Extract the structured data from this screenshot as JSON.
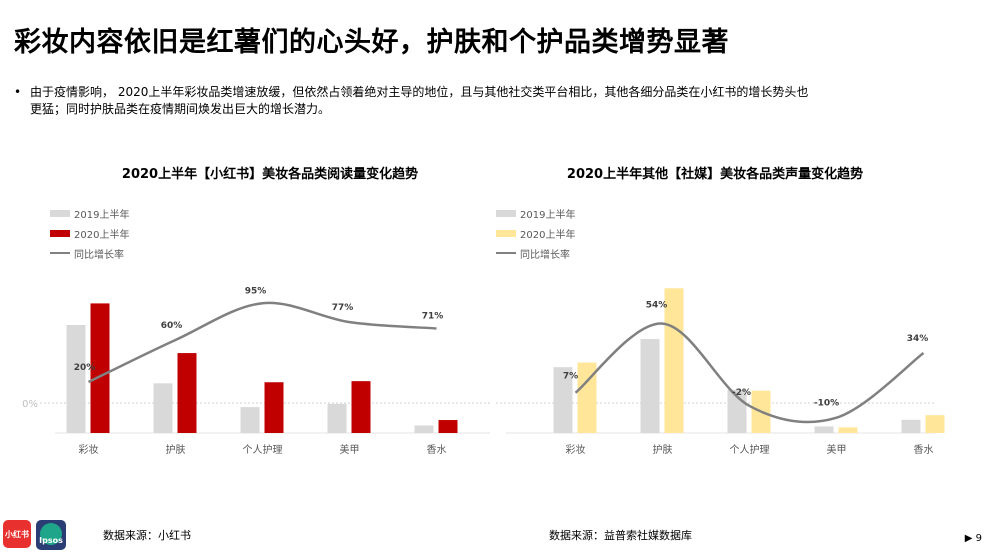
{
  "page": {
    "title": "彩妆内容依旧是红薯们的心头好，护肤和个护品类增势显著",
    "bullet": "由于疫情影响， 2020上半年彩妆品类增速放缓，但依然占领着绝对主导的地位，且与其他社交类平台相比，其他各细分品类在小红书的增长势头也更猛；同时护肤品类在疫情期间焕发出巨大的增长潜力。",
    "logo_left": "小红书",
    "logo_right": "Ipsos",
    "page_number": "9",
    "page_arrow": "▶"
  },
  "chart_data": [
    {
      "type": "bar",
      "title": "2020上半年【小红书】美妆各品类阅读量变化趋势",
      "categories": [
        "彩妆",
        "护肤",
        "个人护理",
        "美甲",
        "香水"
      ],
      "series": [
        {
          "name": "2019上半年",
          "values": [
            100,
            46,
            24,
            27,
            7
          ],
          "color": "#d9d9d9"
        },
        {
          "name": "2020上半年",
          "values": [
            120,
            74,
            47,
            48,
            12
          ],
          "color": "#c00000"
        }
      ],
      "line": {
        "name": "同比增长率",
        "values": [
          20,
          60,
          95,
          77,
          71
        ],
        "labels": [
          "20%",
          "60%",
          "95%",
          "77%",
          "71%"
        ],
        "color": "#808080"
      },
      "zero_label": "0%",
      "source": "数据来源：小红书"
    },
    {
      "type": "bar",
      "title": "2020上半年其他【社媒】美妆各品类声量变化趋势",
      "categories": [
        "彩妆",
        "护肤",
        "个人护理",
        "美甲",
        "香水"
      ],
      "series": [
        {
          "name": "2019上半年",
          "values": [
            70,
            100,
            46,
            7,
            14
          ],
          "color": "#d9d9d9"
        },
        {
          "name": "2020上半年",
          "values": [
            75,
            154,
            45,
            6,
            19
          ],
          "color": "#ffe699"
        }
      ],
      "line": {
        "name": "同比增长率",
        "values": [
          7,
          54,
          -2,
          -10,
          34
        ],
        "labels": [
          "7%",
          "54%",
          "-2%",
          "-10%",
          "34%"
        ],
        "color": "#808080"
      },
      "source": "数据来源：益普索社媒数据库"
    }
  ]
}
